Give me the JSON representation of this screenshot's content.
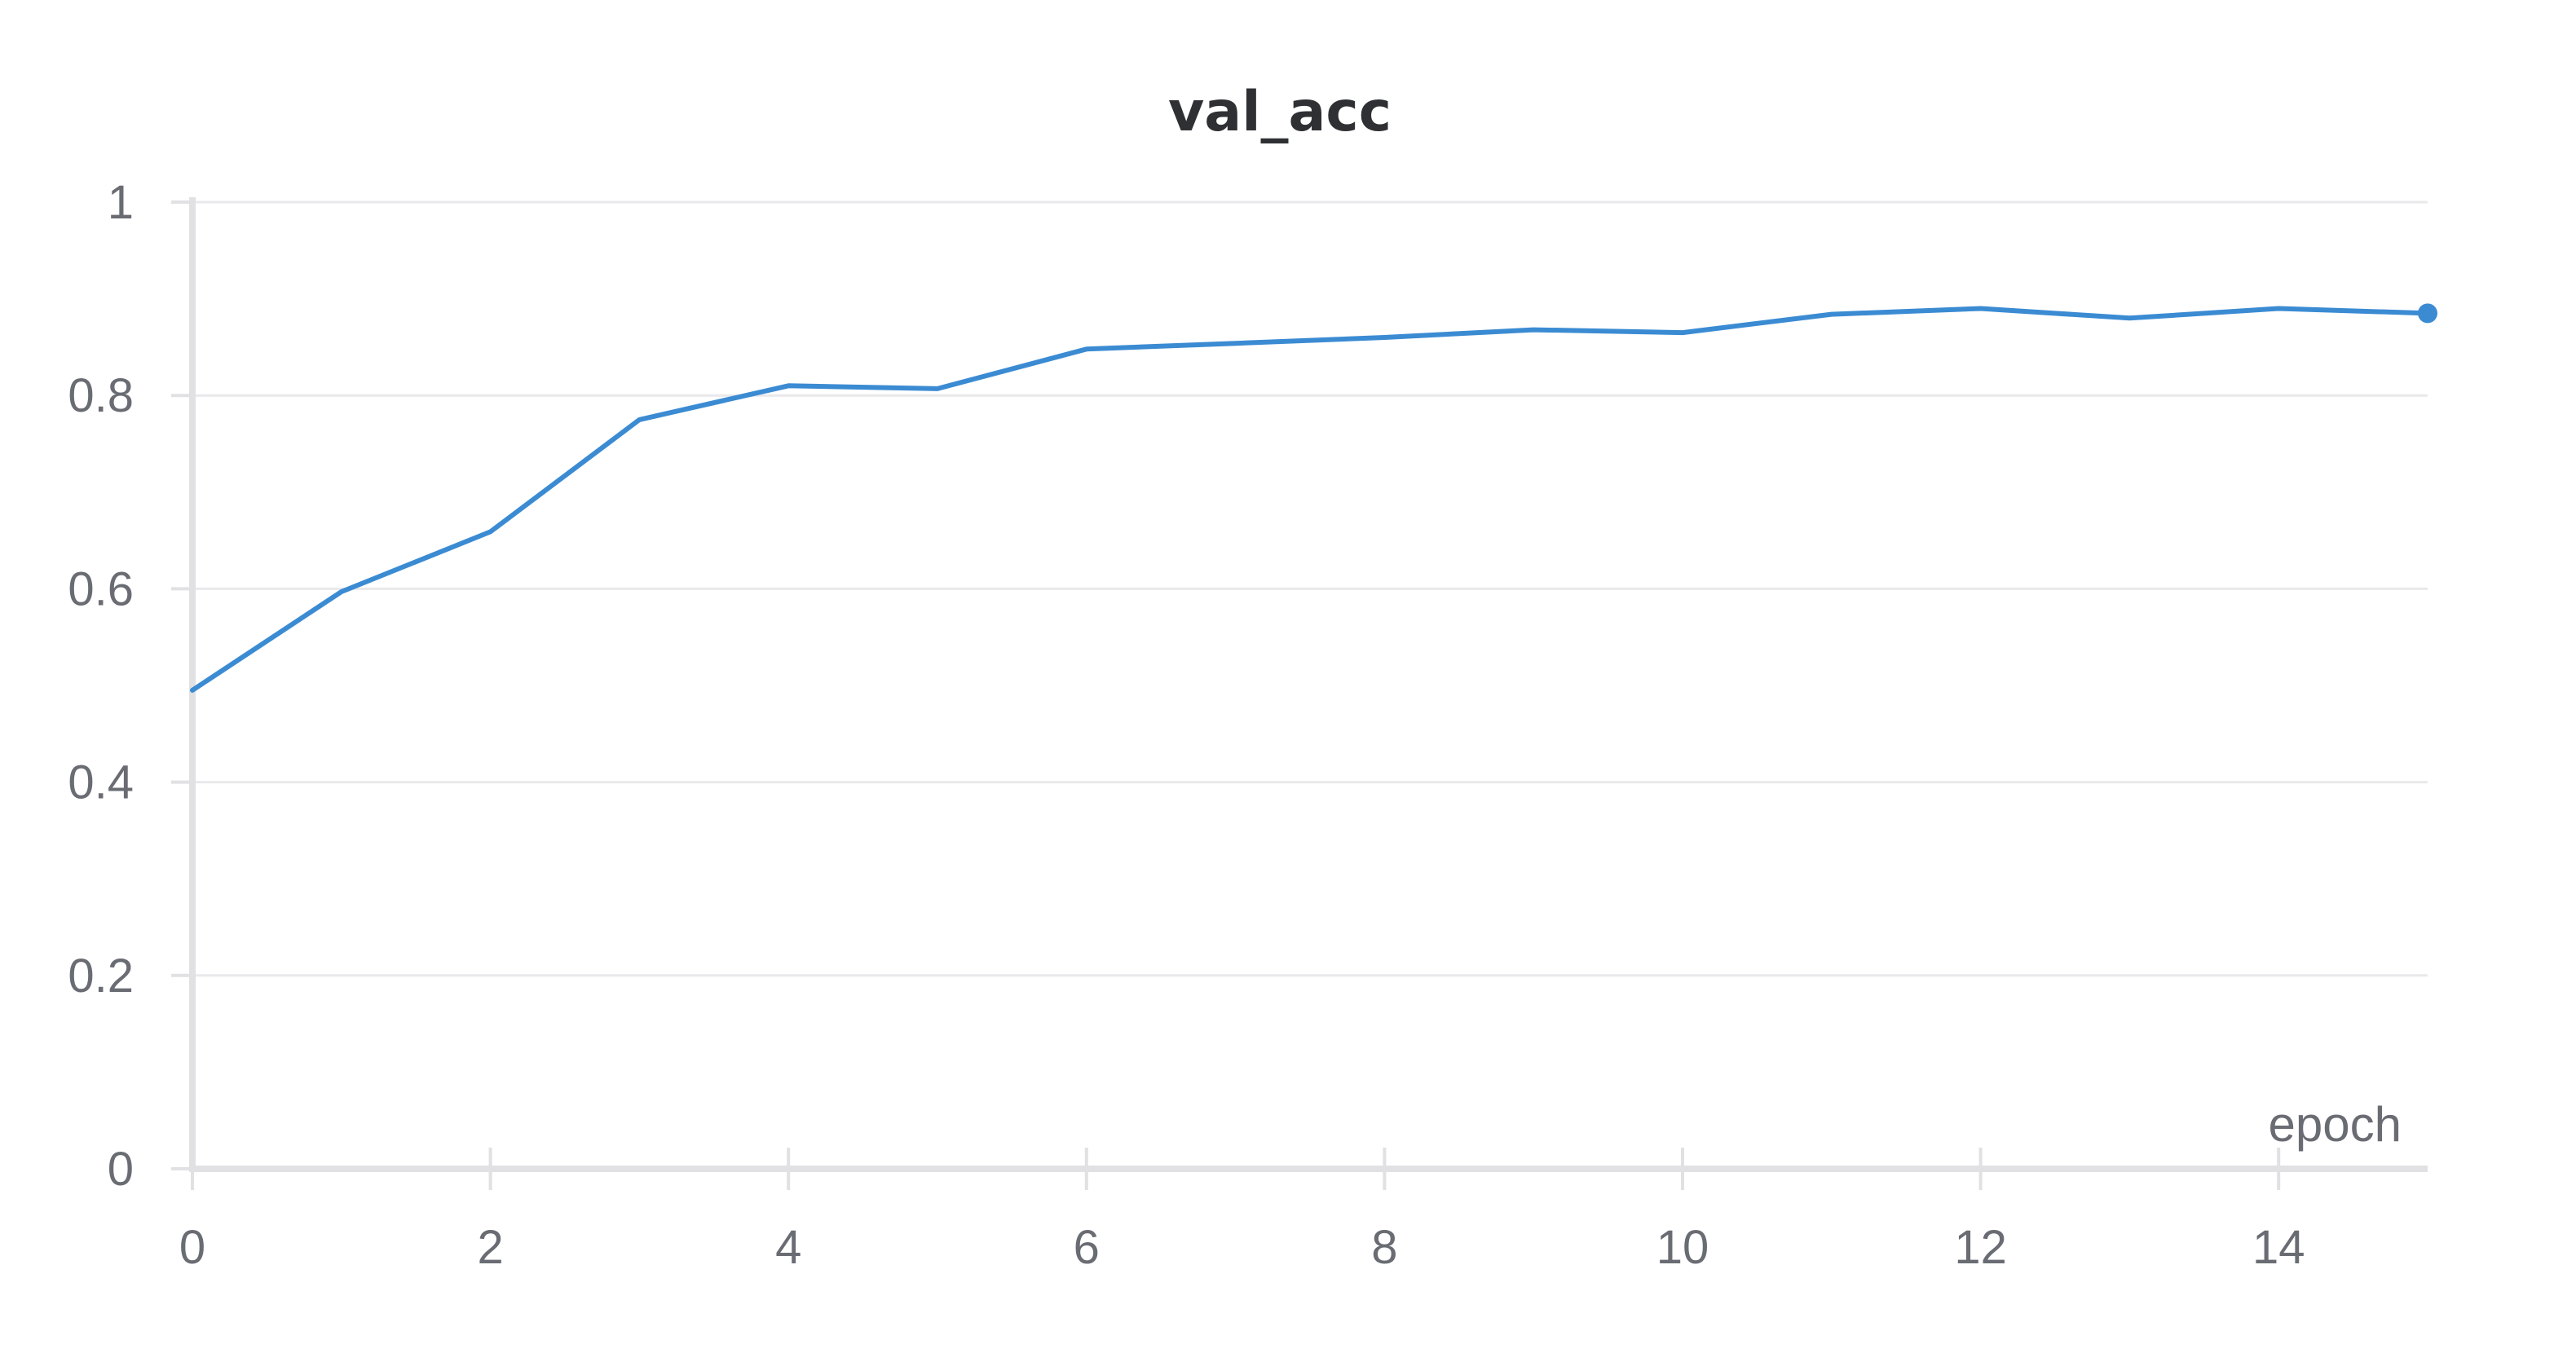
{
  "chart_data": {
    "type": "line",
    "title": "val_acc",
    "xlabel": "epoch",
    "ylabel": "",
    "xlim": [
      0,
      15
    ],
    "ylim": [
      0,
      1
    ],
    "x_ticks": [
      "0",
      "2",
      "4",
      "6",
      "8",
      "10",
      "12",
      "14"
    ],
    "y_ticks": [
      "0",
      "0.2",
      "0.4",
      "0.6",
      "0.8",
      "1"
    ],
    "grid": true,
    "series": [
      {
        "color": "#3b8bd3",
        "x": [
          0,
          1,
          2,
          3,
          4,
          5,
          6,
          7,
          8,
          9,
          10,
          11,
          12,
          13,
          14,
          15
        ],
        "values": [
          0.495,
          0.597,
          0.659,
          0.775,
          0.81,
          0.807,
          0.848,
          0.854,
          0.86,
          0.868,
          0.865,
          0.884,
          0.89,
          0.88,
          0.89,
          0.885
        ]
      }
    ]
  }
}
